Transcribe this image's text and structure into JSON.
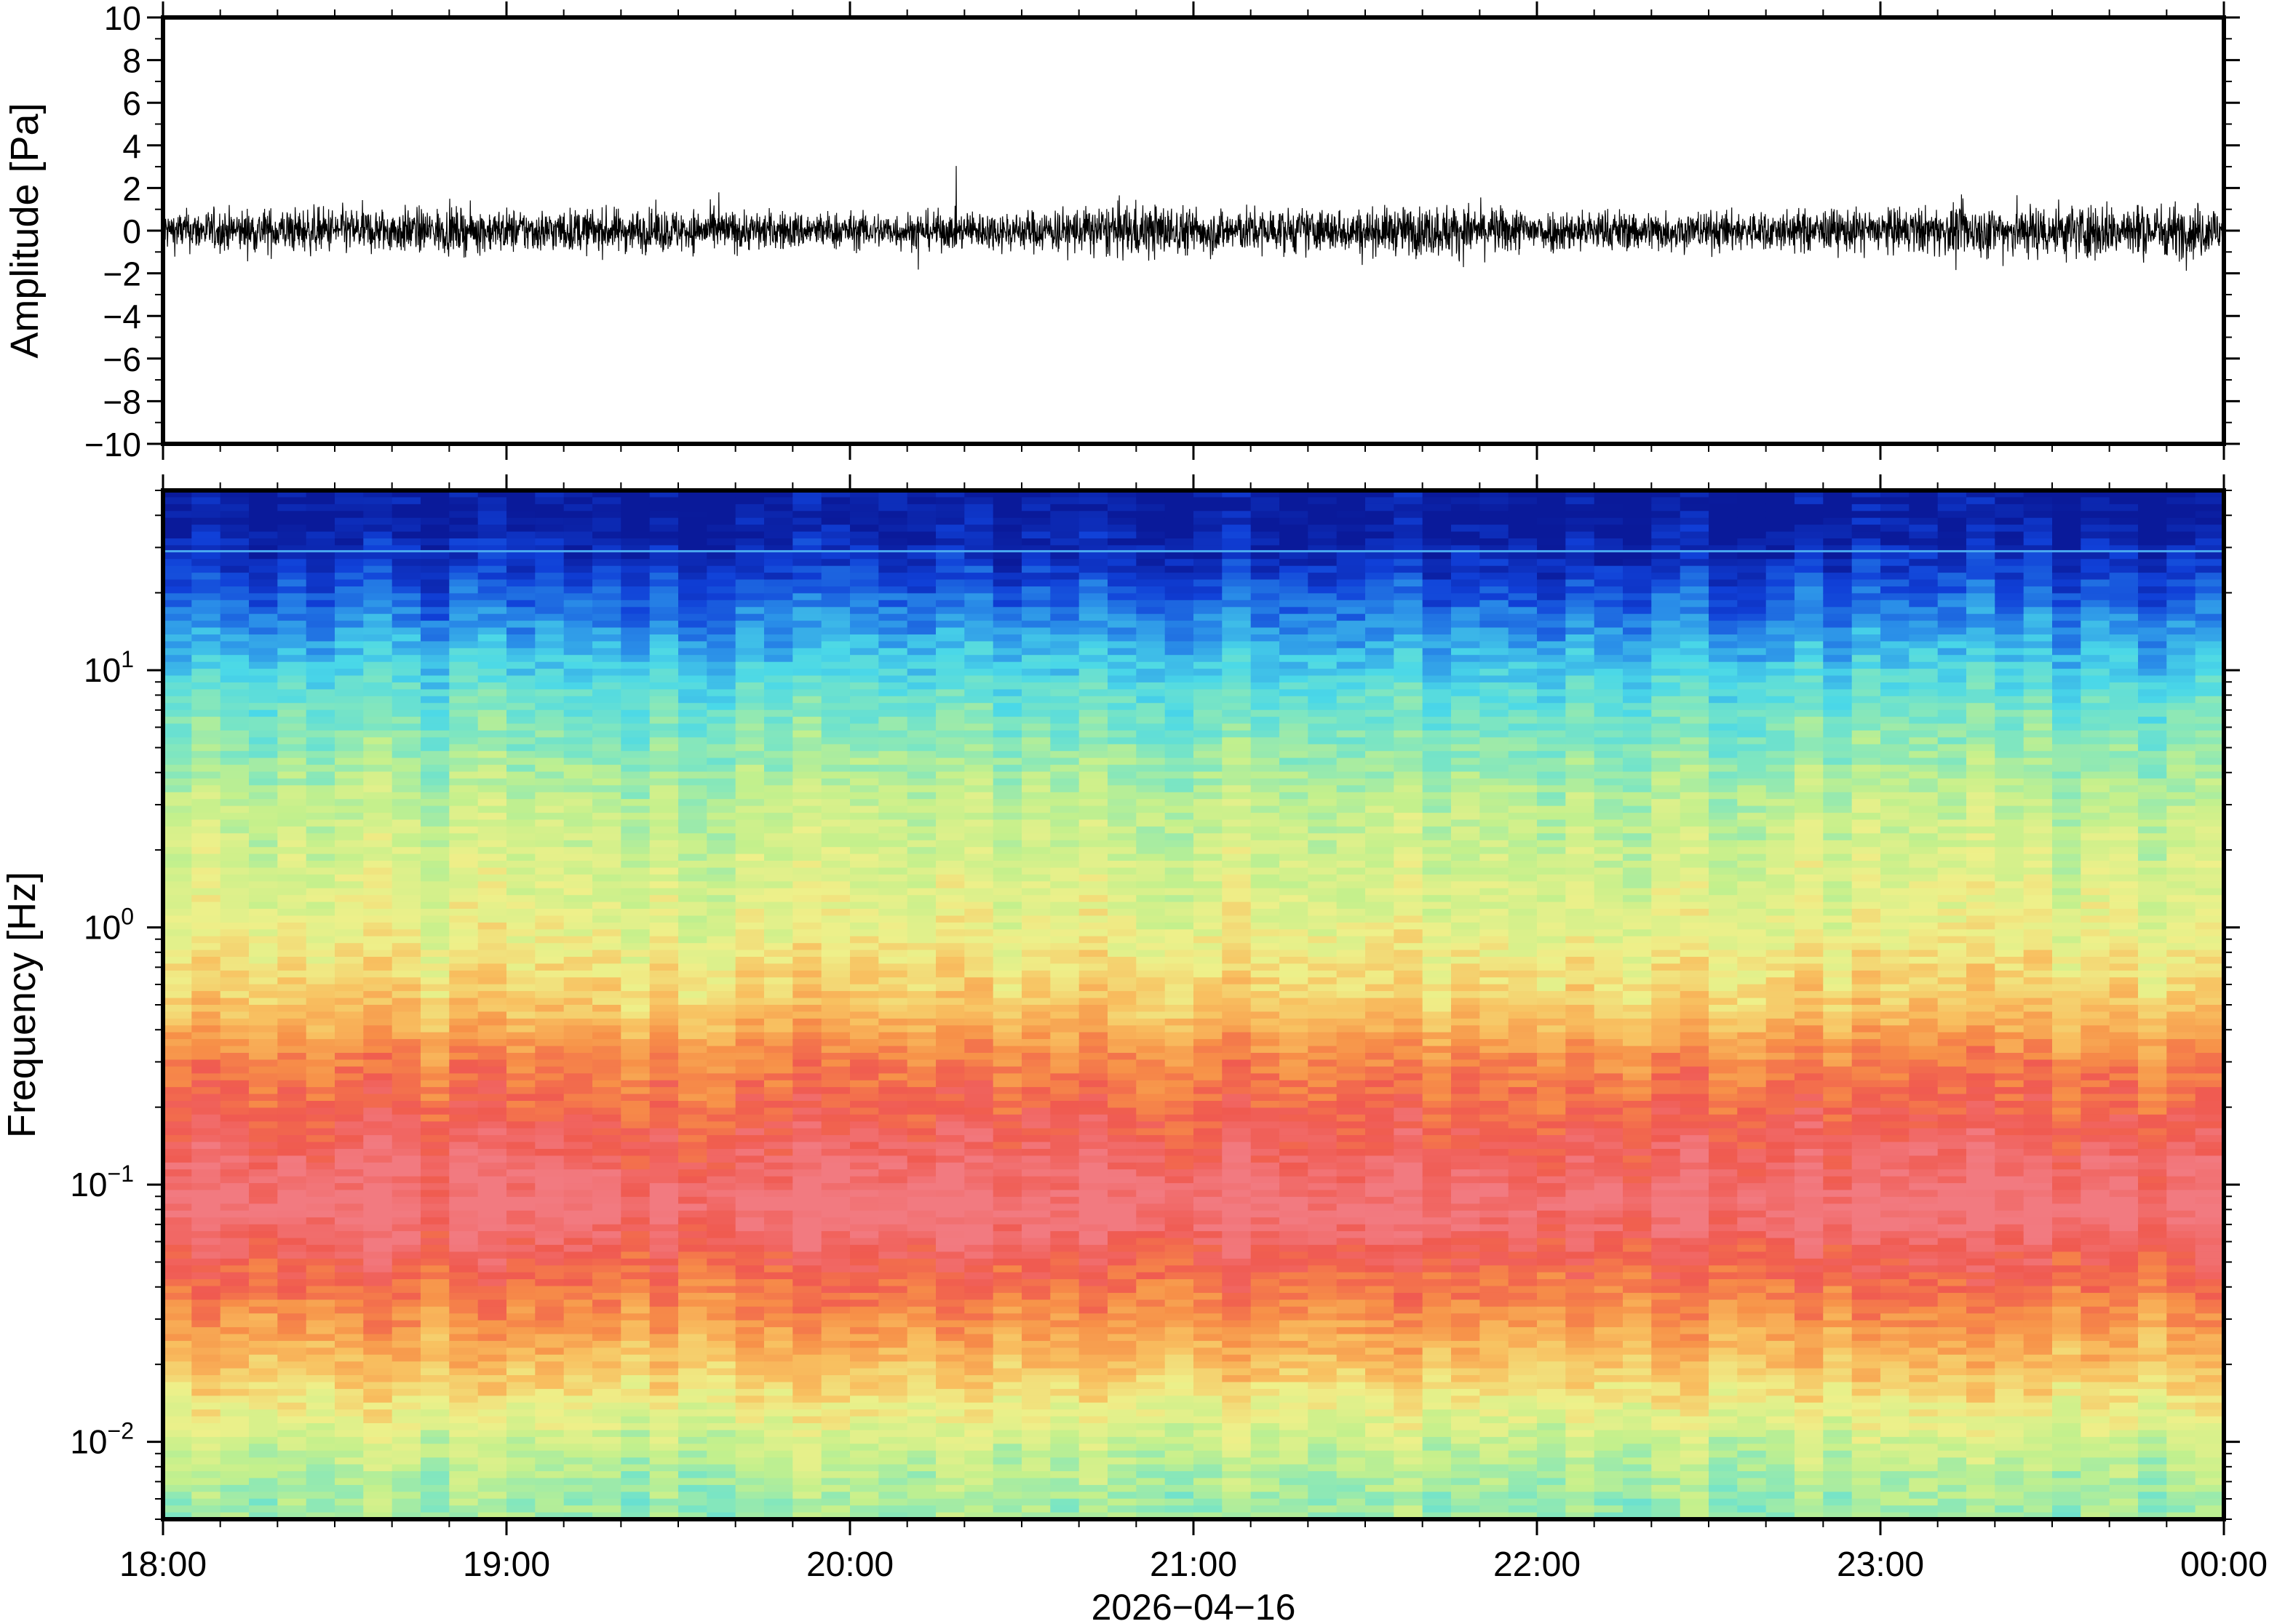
{
  "chart_data": [
    {
      "type": "line",
      "ylabel": "Amplitude [Pa]",
      "ylim": [
        -10,
        10
      ],
      "yticks": [
        "10",
        "8",
        "6",
        "4",
        "2",
        "0",
        "−2",
        "−4",
        "−6",
        "−8",
        "−10"
      ],
      "ytick_values": [
        10,
        8,
        6,
        4,
        2,
        0,
        -2,
        -4,
        -6,
        -8,
        -10
      ],
      "x_range_hours": [
        18,
        24
      ],
      "series": [
        {
          "values_note_free": true,
          "envelope_hours": [
            18.0,
            18.5,
            19.0,
            19.5,
            20.0,
            20.5,
            20.85,
            21.0,
            21.5,
            21.75,
            22.0,
            22.5,
            23.0,
            23.5,
            24.0
          ],
          "envelope_pa": [
            1.2,
            1.4,
            1.3,
            1.3,
            1.1,
            1.2,
            1.7,
            1.4,
            1.3,
            1.6,
            1.3,
            1.2,
            1.3,
            1.7,
            1.6
          ]
        }
      ],
      "grid": false
    },
    {
      "type": "heatmap",
      "ylabel": "Frequency [Hz]",
      "yscale": "log",
      "ylim": [
        0.005,
        50
      ],
      "ytick_labels": [
        {
          "base": "10",
          "exp": "1",
          "value": 10
        },
        {
          "base": "10",
          "exp": "0",
          "value": 1
        },
        {
          "base": "10",
          "exp": "−1",
          "value": 0.1
        },
        {
          "base": "10",
          "exp": "−2",
          "value": 0.01
        }
      ],
      "xticks": [
        "18:00",
        "19:00",
        "20:00",
        "21:00",
        "22:00",
        "23:00",
        "00:00"
      ],
      "xlabel": "2026−04−16",
      "colormap": [
        "#0a1a9a",
        "#1040d8",
        "#2a8ee8",
        "#4ad8e8",
        "#7fe6c0",
        "#c4f08c",
        "#eef08a",
        "#f8c060",
        "#f79048",
        "#f05a50",
        "#f27a80"
      ],
      "frequency_bands_hz": [
        40,
        28,
        15,
        8,
        3,
        1,
        0.5,
        0.3,
        0.15,
        0.08,
        0.04,
        0.02,
        0.01,
        0.006
      ],
      "band_levels": [
        0.0,
        0.05,
        0.2,
        0.35,
        0.5,
        0.58,
        0.68,
        0.82,
        0.92,
        1.0,
        0.85,
        0.7,
        0.52,
        0.45
      ],
      "grid": false
    }
  ]
}
